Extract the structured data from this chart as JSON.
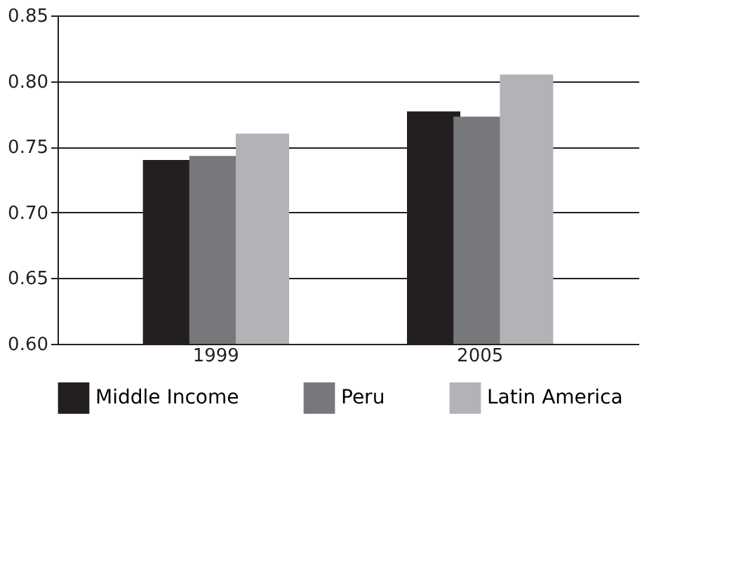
{
  "chart_data": {
    "type": "bar",
    "categories": [
      "1999",
      "2005"
    ],
    "series": [
      {
        "name": "Middle Income",
        "color": "#231f20",
        "values": [
          0.74,
          0.777
        ]
      },
      {
        "name": "Peru",
        "color": "#77787b",
        "values": [
          0.743,
          0.773
        ]
      },
      {
        "name": "Latin America",
        "color": "#b1b3b6",
        "values": [
          0.76,
          0.805
        ]
      }
    ],
    "ylim": [
      0.6,
      0.85
    ],
    "yticks": [
      {
        "value": 0.6,
        "label": "0.60"
      },
      0.65,
      {
        "value": 0.7,
        "label": "0.70"
      },
      0.75,
      {
        "value": 0.8,
        "label": "0.80"
      },
      0.85
    ],
    "grid": "y",
    "legend": "bottom"
  }
}
